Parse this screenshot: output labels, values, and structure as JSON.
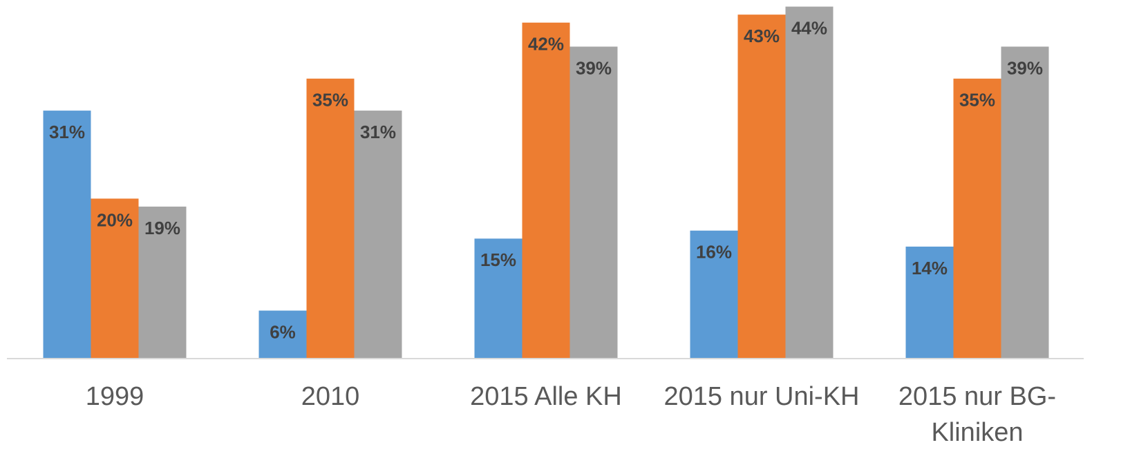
{
  "chart_data": {
    "type": "bar",
    "categories": [
      "1999",
      "2010",
      "2015 Alle KH",
      "2015 nur Uni-KH",
      "2015 nur BG-Kliniken"
    ],
    "series": [
      {
        "color": "#5b9bd5",
        "values": [
          31,
          6,
          15,
          16,
          14
        ],
        "value_labels": [
          "31%",
          "6%",
          "15%",
          "16%",
          "14%"
        ]
      },
      {
        "color": "#ed7d31",
        "values": [
          20,
          35,
          42,
          43,
          35
        ],
        "value_labels": [
          "20%",
          "35%",
          "42%",
          "43%",
          "35%"
        ]
      },
      {
        "color": "#a5a5a5",
        "values": [
          19,
          31,
          39,
          44,
          39
        ],
        "value_labels": [
          "19%",
          "31%",
          "39%",
          "44%",
          "39%"
        ]
      }
    ],
    "ylim": [
      0,
      45
    ]
  }
}
